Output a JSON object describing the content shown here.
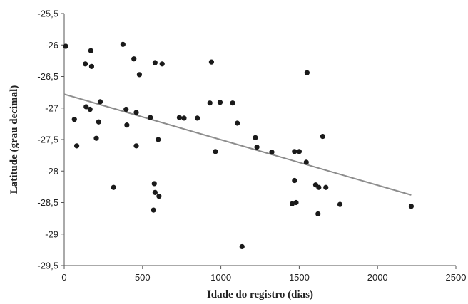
{
  "chart_data": {
    "type": "scatter",
    "title": "",
    "xlabel": "Idade do registro (dias)",
    "ylabel": "Latitude (grau decimal)",
    "xlim": [
      0,
      2500
    ],
    "ylim": [
      -29.5,
      -25.5
    ],
    "x_ticks": [
      0,
      500,
      1000,
      1500,
      2000,
      2500
    ],
    "x_tick_labels": [
      "0",
      "500",
      "1000",
      "1500",
      "2000",
      "2500"
    ],
    "y_ticks": [
      -25.5,
      -26,
      -26.5,
      -27,
      -27.5,
      -28,
      -28.5,
      -29,
      -29.5
    ],
    "y_tick_labels": [
      "-25,5",
      "-26",
      "-26,5",
      "-27",
      "-27,5",
      "-28",
      "-28,5",
      "-29",
      "-29,5"
    ],
    "grid": false,
    "legend": "none",
    "marker_color": "#1a1a1a",
    "trendline_color": "#8c8c8c",
    "points": [
      [
        10,
        -26.02
      ],
      [
        65,
        -27.18
      ],
      [
        80,
        -27.6
      ],
      [
        135,
        -26.3
      ],
      [
        140,
        -26.98
      ],
      [
        165,
        -27.02
      ],
      [
        170,
        -26.09
      ],
      [
        175,
        -26.34
      ],
      [
        205,
        -27.48
      ],
      [
        220,
        -27.22
      ],
      [
        230,
        -26.9
      ],
      [
        315,
        -28.26
      ],
      [
        375,
        -25.99
      ],
      [
        395,
        -27.02
      ],
      [
        400,
        -27.27
      ],
      [
        445,
        -26.22
      ],
      [
        460,
        -27.07
      ],
      [
        460,
        -27.6
      ],
      [
        480,
        -26.47
      ],
      [
        550,
        -27.15
      ],
      [
        570,
        -28.62
      ],
      [
        575,
        -28.2
      ],
      [
        580,
        -28.34
      ],
      [
        580,
        -26.28
      ],
      [
        600,
        -27.5
      ],
      [
        605,
        -28.4
      ],
      [
        625,
        -26.3
      ],
      [
        735,
        -27.15
      ],
      [
        765,
        -27.16
      ],
      [
        850,
        -27.16
      ],
      [
        930,
        -26.92
      ],
      [
        940,
        -26.27
      ],
      [
        965,
        -27.69
      ],
      [
        995,
        -26.91
      ],
      [
        1075,
        -26.92
      ],
      [
        1105,
        -27.24
      ],
      [
        1135,
        -29.2
      ],
      [
        1220,
        -27.47
      ],
      [
        1230,
        -27.62
      ],
      [
        1325,
        -27.7
      ],
      [
        1455,
        -28.52
      ],
      [
        1470,
        -27.69
      ],
      [
        1470,
        -28.15
      ],
      [
        1480,
        -28.5
      ],
      [
        1500,
        -27.69
      ],
      [
        1545,
        -27.86
      ],
      [
        1550,
        -26.44
      ],
      [
        1605,
        -28.22
      ],
      [
        1620,
        -28.68
      ],
      [
        1625,
        -28.26
      ],
      [
        1650,
        -27.45
      ],
      [
        1670,
        -28.26
      ],
      [
        1760,
        -28.53
      ],
      [
        2215,
        -28.56
      ]
    ],
    "trendline": {
      "x": [
        0,
        2215
      ],
      "y": [
        -26.78,
        -28.38
      ]
    }
  }
}
